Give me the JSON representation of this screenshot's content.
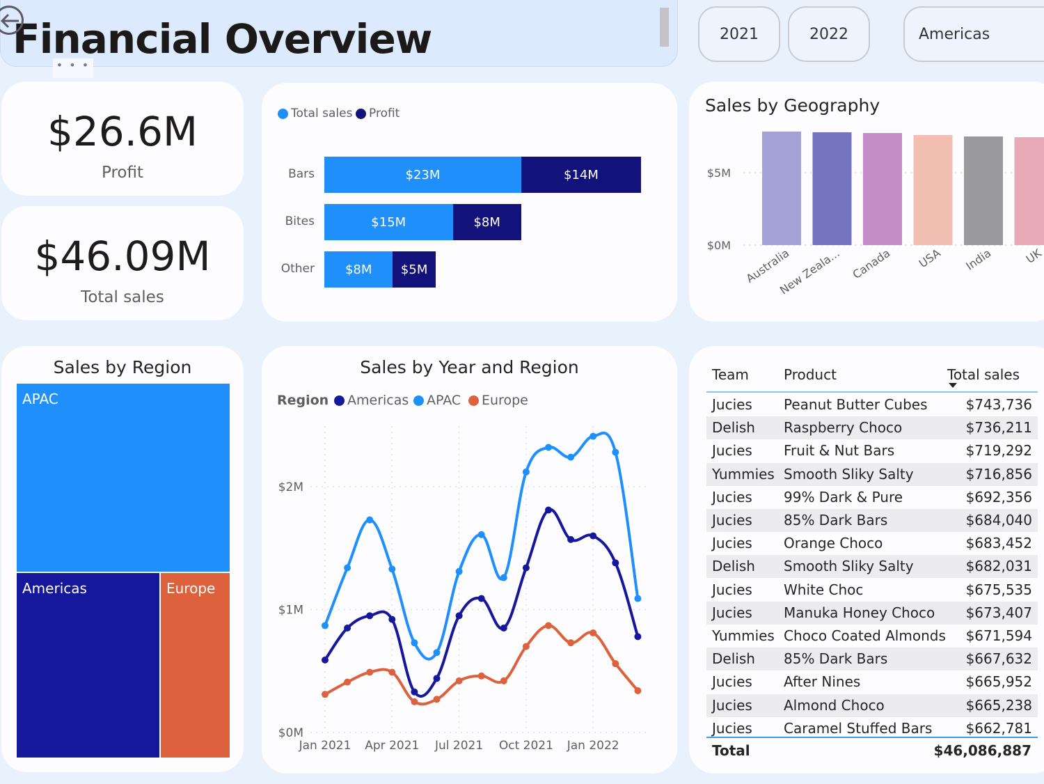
{
  "header": {
    "title": "Financial Overview",
    "more_options": "• • •",
    "year_slicer": [
      "2021",
      "2022"
    ],
    "region_slicer": "Americas"
  },
  "kpis": [
    {
      "value": "$26.6M",
      "label": "Profit"
    },
    {
      "value": "$46.09M",
      "label": "Total sales"
    }
  ],
  "colors": {
    "total_sales": "#1f8ffb",
    "profit": "#12127a",
    "apac": "#1f8ffb",
    "americas": "#15189a",
    "europe": "#dc613c"
  },
  "chart_data": [
    {
      "id": "category-bars",
      "type": "bar",
      "orientation": "horizontal-stacked",
      "title": "",
      "legend": [
        "Total sales",
        "Profit"
      ],
      "legend_position": "top-left",
      "categories": [
        "Bars",
        "Bites",
        "Other"
      ],
      "series": [
        {
          "name": "Total sales",
          "values": [
            23,
            15,
            8
          ],
          "labels": [
            "$23M",
            "$15M",
            "$8M"
          ]
        },
        {
          "name": "Profit",
          "values": [
            14,
            8,
            5
          ],
          "labels": [
            "$14M",
            "$8M",
            "$5M"
          ]
        }
      ],
      "xlabel": "",
      "ylabel": ""
    },
    {
      "id": "sales-by-geography",
      "type": "bar",
      "title": "Sales by Geography",
      "categories": [
        "Australia",
        "New Zeala...",
        "Canada",
        "USA",
        "India",
        "UK"
      ],
      "values": [
        7.84,
        7.79,
        7.74,
        7.6,
        7.5,
        7.45
      ],
      "colors": [
        "#a2a2d6",
        "#7473be",
        "#c48dc8",
        "#f2bfb2",
        "#9a999c",
        "#e9aab8"
      ],
      "yticks": [
        "$0M",
        "$5M"
      ],
      "ytick_values": [
        0,
        5
      ],
      "ylim": [
        0,
        8
      ],
      "unit": "$M",
      "grid": true
    },
    {
      "id": "sales-by-region",
      "type": "treemap",
      "title": "Sales by Region",
      "categories": [
        "APAC",
        "Americas",
        "Europe"
      ],
      "values": [
        22.9,
        15.7,
        7.5
      ],
      "unit": "$M"
    },
    {
      "id": "sales-by-year-region",
      "type": "line",
      "title": "Sales by Year and Region",
      "legend_title": "Region",
      "legend": [
        "Americas",
        "APAC",
        "Europe"
      ],
      "legend_position": "top-left",
      "x": [
        "Jan 2021",
        "Feb 2021",
        "Mar 2021",
        "Apr 2021",
        "May 2021",
        "Jun 2021",
        "Jul 2021",
        "Aug 2021",
        "Sep 2021",
        "Oct 2021",
        "Nov 2021",
        "Dec 2021",
        "Jan 2022",
        "Feb 2022",
        "Mar 2022"
      ],
      "xticks": [
        "Jan 2021",
        "Apr 2021",
        "Jul 2021",
        "Oct 2021",
        "Jan 2022"
      ],
      "yticks": [
        "$0M",
        "$1M",
        "$2M"
      ],
      "ytick_values": [
        0,
        1,
        2
      ],
      "ylim": [
        0,
        2.5
      ],
      "unit": "$M",
      "grid": true,
      "series": [
        {
          "name": "Americas",
          "values": [
            0.59,
            0.85,
            0.95,
            0.92,
            0.33,
            0.44,
            0.95,
            1.09,
            0.85,
            1.34,
            1.81,
            1.57,
            1.6,
            1.38,
            0.78
          ]
        },
        {
          "name": "APAC",
          "values": [
            0.87,
            1.34,
            1.73,
            1.33,
            0.73,
            0.65,
            1.31,
            1.61,
            1.26,
            2.12,
            2.32,
            2.24,
            2.41,
            2.28,
            1.09
          ]
        },
        {
          "name": "Europe",
          "values": [
            0.31,
            0.41,
            0.49,
            0.49,
            0.25,
            0.27,
            0.42,
            0.46,
            0.42,
            0.7,
            0.87,
            0.73,
            0.81,
            0.56,
            0.34
          ]
        }
      ]
    }
  ],
  "table": {
    "headers": {
      "team": "Team",
      "product": "Product",
      "sales": "Total sales"
    },
    "sort": "Total sales descending",
    "rows": [
      {
        "team": "Jucies",
        "product": "Peanut Butter Cubes",
        "sales": "$743,736"
      },
      {
        "team": "Delish",
        "product": "Raspberry Choco",
        "sales": "$736,211"
      },
      {
        "team": "Jucies",
        "product": "Fruit & Nut Bars",
        "sales": "$719,292"
      },
      {
        "team": "Yummies",
        "product": "Smooth Sliky Salty",
        "sales": "$716,856"
      },
      {
        "team": "Jucies",
        "product": "99% Dark & Pure",
        "sales": "$692,356"
      },
      {
        "team": "Jucies",
        "product": "85% Dark Bars",
        "sales": "$684,040"
      },
      {
        "team": "Jucies",
        "product": "Orange Choco",
        "sales": "$683,452"
      },
      {
        "team": "Delish",
        "product": "Smooth Sliky Salty",
        "sales": "$682,031"
      },
      {
        "team": "Jucies",
        "product": "White Choc",
        "sales": "$675,535"
      },
      {
        "team": "Jucies",
        "product": "Manuka Honey Choco",
        "sales": "$673,407"
      },
      {
        "team": "Yummies",
        "product": "Choco Coated Almonds",
        "sales": "$671,594"
      },
      {
        "team": "Delish",
        "product": "85% Dark Bars",
        "sales": "$667,632"
      },
      {
        "team": "Jucies",
        "product": "After Nines",
        "sales": "$665,952"
      },
      {
        "team": "Jucies",
        "product": "Almond Choco",
        "sales": "$665,238"
      },
      {
        "team": "Jucies",
        "product": "Caramel Stuffed Bars",
        "sales": "$662,781"
      }
    ],
    "total_label": "Total",
    "total_value": "$46,086,887"
  }
}
